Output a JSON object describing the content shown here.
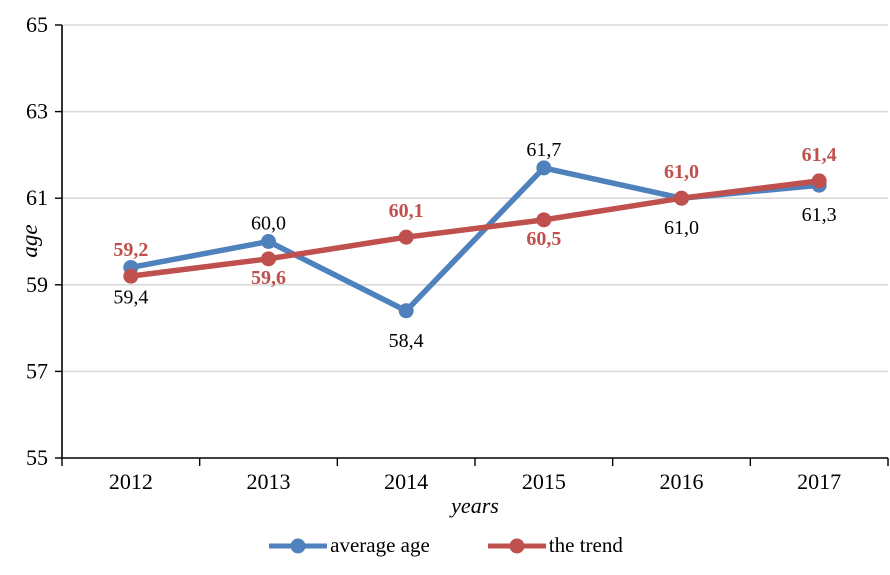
{
  "chart_data": {
    "type": "line",
    "categories": [
      "2012",
      "2013",
      "2014",
      "2015",
      "2016",
      "2017"
    ],
    "series": [
      {
        "name": "average age",
        "color": "#4F81BD",
        "values": [
          59.4,
          60.0,
          58.4,
          61.7,
          61.0,
          61.3
        ],
        "labels": [
          "59,4",
          "60,0",
          "58,4",
          "61,7",
          "61,0",
          "61,3"
        ],
        "label_sides": [
          "below",
          "above",
          "below",
          "above",
          "below",
          "below"
        ],
        "label_color": "#000000",
        "label_bold": false
      },
      {
        "name": "the trend",
        "color": "#C0504D",
        "values": [
          59.2,
          59.6,
          60.1,
          60.5,
          61.0,
          61.4
        ],
        "labels": [
          "59,2",
          "59,6",
          "60,1",
          "60,5",
          "61,0",
          "61,4"
        ],
        "label_sides": [
          "above",
          "below",
          "above",
          "below",
          "above",
          "above"
        ],
        "label_color": "#C0504D",
        "label_bold": true
      }
    ],
    "title": "",
    "xlabel": "years",
    "ylabel": "age",
    "ylim": [
      55,
      65
    ],
    "yticks": [
      55,
      57,
      59,
      61,
      63,
      65
    ],
    "grid": true,
    "gridline_color": "#D9D9D9",
    "axis_color": "#000000",
    "legend_position": "bottom"
  }
}
